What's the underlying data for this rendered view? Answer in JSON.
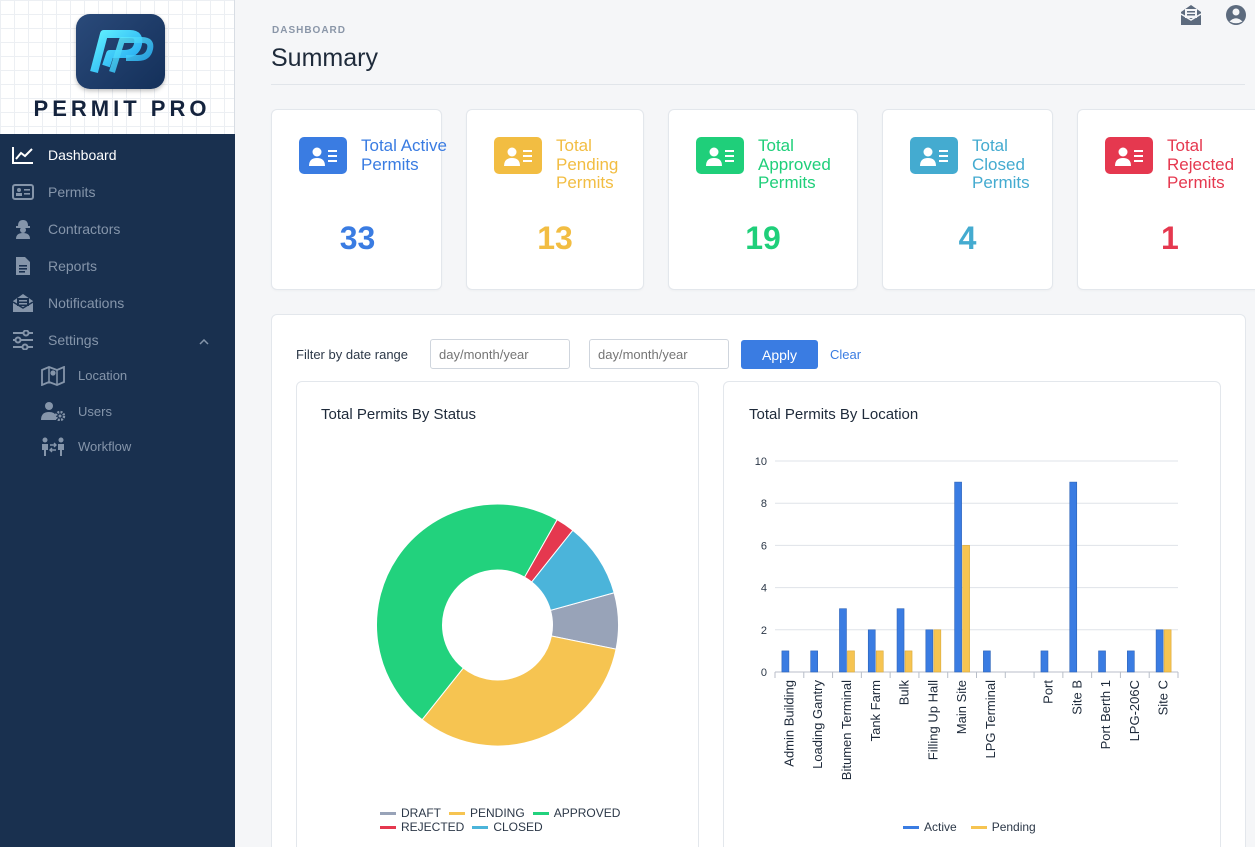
{
  "brand": {
    "name": "PERMIT PRO"
  },
  "nav": {
    "items": [
      {
        "label": "Dashboard",
        "icon": "chart-line-icon",
        "active": true
      },
      {
        "label": "Permits",
        "icon": "id-card-icon"
      },
      {
        "label": "Contractors",
        "icon": "worker-icon"
      },
      {
        "label": "Reports",
        "icon": "file-icon"
      },
      {
        "label": "Notifications",
        "icon": "envelope-open-icon"
      },
      {
        "label": "Settings",
        "icon": "sliders-icon",
        "expanded": true
      }
    ],
    "sub_items": [
      {
        "label": "Location",
        "icon": "map-icon"
      },
      {
        "label": "Users",
        "icon": "users-gear-icon"
      },
      {
        "label": "Workflow",
        "icon": "people-arrows-icon"
      }
    ]
  },
  "header": {
    "breadcrumb": "DASHBOARD",
    "title": "Summary"
  },
  "cards": [
    {
      "label": "Total Active Permits",
      "value": "33",
      "color": "#3a7ce2"
    },
    {
      "label": "Total Pending Permits",
      "value": "13",
      "color": "#f2bd42"
    },
    {
      "label": "Total Approved Permits",
      "value": "19",
      "color": "#1fcf7a"
    },
    {
      "label": "Total Closed Permits",
      "value": "4",
      "color": "#44abd0"
    },
    {
      "label": "Total Rejected Permits",
      "value": "1",
      "color": "#e5384f"
    }
  ],
  "filter": {
    "label": "Filter by date range",
    "from_placeholder": "day/month/year",
    "to_placeholder": "day/month/year",
    "apply_label": "Apply",
    "clear_label": "Clear"
  },
  "chart_data": [
    {
      "type": "pie",
      "title": "Total Permits By Status",
      "categories": [
        "DRAFT",
        "PENDING",
        "APPROVED",
        "REJECTED",
        "CLOSED"
      ],
      "values": [
        3,
        13,
        19,
        1,
        4
      ],
      "colors": [
        "#98a3b8",
        "#f6c451",
        "#22d27d",
        "#e5384f",
        "#4bb4da"
      ],
      "legend": "bottom"
    },
    {
      "type": "bar",
      "title": "Total Permits By Location",
      "categories": [
        "Admin Building",
        "Loading Gantry",
        "Bitumen Terminal",
        "Tank Farm",
        "Bulk",
        "Filling Up Hall",
        "Main Site",
        "LPG Terminal",
        "",
        "Port",
        "Site B",
        "Port Berth 1",
        "LPG-206C",
        "Site C"
      ],
      "series": [
        {
          "name": "Active",
          "color": "#3a7ce2",
          "values": [
            1,
            1,
            3,
            2,
            3,
            2,
            9,
            1,
            0,
            1,
            9,
            1,
            1,
            2
          ]
        },
        {
          "name": "Pending",
          "color": "#f6c451",
          "values": [
            0,
            0,
            1,
            1,
            1,
            2,
            6,
            0,
            0,
            0,
            0,
            0,
            0,
            2
          ]
        }
      ],
      "ylim": [
        0,
        10
      ],
      "yticks": [
        "0",
        "2",
        "4",
        "6",
        "8",
        "10"
      ],
      "grid": true,
      "legend": "bottom"
    }
  ]
}
